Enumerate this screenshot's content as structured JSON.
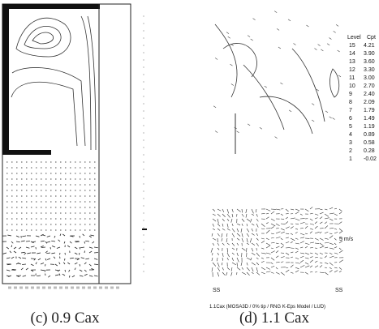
{
  "panels": [
    {
      "caption": "(c) 0.9 Cax"
    },
    {
      "caption": "(d) 1.1 Cax",
      "legend": {
        "header": [
          "Level",
          "Cpt"
        ],
        "rows": [
          [
            "15",
            "4.21"
          ],
          [
            "14",
            "3.90"
          ],
          [
            "13",
            "3.60"
          ],
          [
            "12",
            "3.30"
          ],
          [
            "11",
            "3.00"
          ],
          [
            "10",
            "2.70"
          ],
          [
            "9",
            "2.40"
          ],
          [
            "8",
            "2.09"
          ],
          [
            "7",
            "1.79"
          ],
          [
            "6",
            "1.49"
          ],
          [
            "5",
            "1.19"
          ],
          [
            "4",
            "0.89"
          ],
          [
            "3",
            "0.58"
          ],
          [
            "2",
            "0.28"
          ],
          [
            "1",
            "-0.02"
          ]
        ]
      },
      "vector_scale": "5 m/s",
      "axis_labels": [
        "SS",
        "SS"
      ],
      "subtitle": "1.1Cax (MOSA3D / 0% tip / RNG K-Eps Model / LUD)"
    }
  ]
}
